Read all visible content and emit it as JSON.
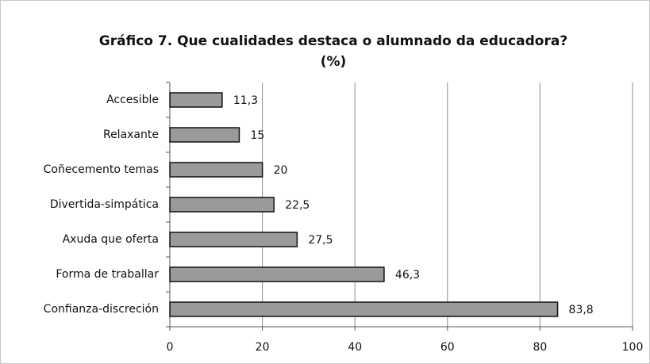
{
  "chart_data": {
    "type": "bar",
    "orientation": "horizontal",
    "title": [
      "Gráfico 7. Que cualidades destaca o alumnado da educadora?",
      "(%)"
    ],
    "categories": [
      "Accesible",
      "Relaxante",
      "Coñecemento temas",
      "Divertida-simpática",
      "Axuda que oferta",
      "Forma de traballar",
      "Confianza-discreción"
    ],
    "values": [
      11.3,
      15,
      20,
      22.5,
      27.5,
      46.3,
      83.8
    ],
    "value_labels": [
      "11,3",
      "15",
      "20",
      "22,5",
      "27,5",
      "46,3",
      "83,8"
    ],
    "color": "#9a9a9a",
    "xlim": [
      0,
      100
    ],
    "xticks": [
      0,
      20,
      40,
      60,
      80,
      100
    ],
    "grid": true
  }
}
